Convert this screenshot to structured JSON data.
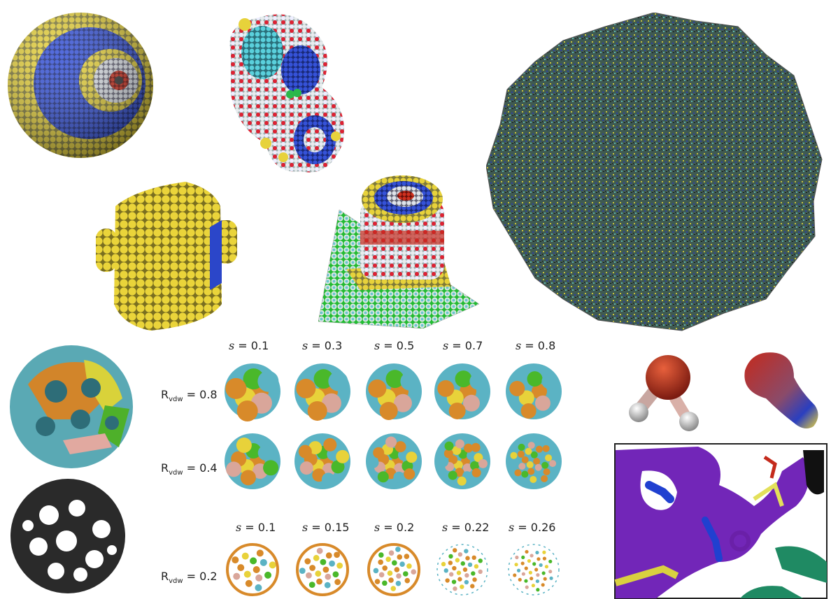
{
  "labels": {
    "s_prefix": "s",
    "r_prefix": "R",
    "r_sub": "vdw",
    "eq": " = "
  },
  "s_row_top": [
    "0.1",
    "0.3",
    "0.5",
    "0.7",
    "0.8"
  ],
  "s_row_bottom": [
    "0.1",
    "0.15",
    "0.2",
    "0.22",
    "0.26"
  ],
  "r_values": [
    "0.8",
    "0.4",
    "0.2"
  ],
  "colors": {
    "yellow": "#e8d23a",
    "blue": "#2b46c9",
    "white": "#dfe6ea",
    "red": "#c42a1c",
    "cyan": "#5bb3c4",
    "orange": "#d88a2a",
    "green": "#4ab82a",
    "pink": "#d9a69a",
    "purple": "#7426b8",
    "teal": "#1f8a63",
    "black": "#1a1a1a"
  }
}
